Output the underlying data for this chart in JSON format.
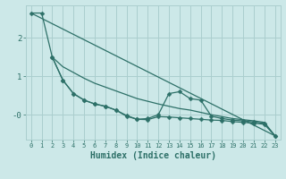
{
  "xlabel": "Humidex (Indice chaleur)",
  "bg_color": "#cce8e8",
  "line_color": "#2d7068",
  "grid_color": "#aacece",
  "xlim": [
    -0.5,
    23.5
  ],
  "ylim": [
    -0.65,
    2.85
  ],
  "ytick_positions": [
    2.0,
    1.0,
    0.0
  ],
  "ytick_labels": [
    "2",
    "1",
    "-0"
  ],
  "xticks": [
    0,
    1,
    2,
    3,
    4,
    5,
    6,
    7,
    8,
    9,
    10,
    11,
    12,
    13,
    14,
    15,
    16,
    17,
    18,
    19,
    20,
    21,
    22,
    23
  ],
  "line1_x": [
    0,
    23
  ],
  "line1_y": [
    2.65,
    -0.55
  ],
  "line2_x": [
    0,
    1,
    2,
    3,
    4,
    5,
    6,
    7,
    8,
    9,
    10,
    11,
    12,
    13,
    14,
    15,
    16,
    17,
    18,
    19,
    20,
    21,
    22,
    23
  ],
  "line2_y": [
    2.65,
    2.65,
    1.5,
    0.9,
    0.55,
    0.38,
    0.28,
    0.22,
    0.12,
    -0.02,
    -0.12,
    -0.13,
    -0.05,
    -0.06,
    -0.08,
    -0.1,
    -0.12,
    -0.14,
    -0.15,
    -0.18,
    -0.2,
    -0.22,
    -0.25,
    -0.55
  ],
  "line3_x": [
    2,
    3,
    4,
    5,
    6,
    7,
    8,
    9,
    10,
    11,
    12,
    13,
    14,
    15,
    16,
    17,
    18,
    19,
    20,
    21,
    22,
    23
  ],
  "line3_y": [
    1.5,
    0.9,
    0.55,
    0.38,
    0.28,
    0.22,
    0.12,
    -0.04,
    -0.12,
    -0.1,
    0.0,
    0.55,
    0.6,
    0.42,
    0.38,
    -0.04,
    -0.1,
    -0.14,
    -0.16,
    -0.19,
    -0.23,
    -0.55
  ],
  "line4_x": [
    2,
    3,
    4,
    5,
    6,
    7,
    8,
    9,
    10,
    11,
    12,
    13,
    14,
    15,
    16,
    17,
    18,
    19,
    20,
    21,
    22,
    23
  ],
  "line4_y": [
    1.5,
    1.25,
    1.1,
    0.95,
    0.82,
    0.72,
    0.62,
    0.52,
    0.42,
    0.35,
    0.28,
    0.22,
    0.16,
    0.12,
    0.06,
    0.0,
    -0.05,
    -0.1,
    -0.13,
    -0.16,
    -0.2,
    -0.55
  ],
  "markersize": 2.5,
  "linewidth": 0.9
}
